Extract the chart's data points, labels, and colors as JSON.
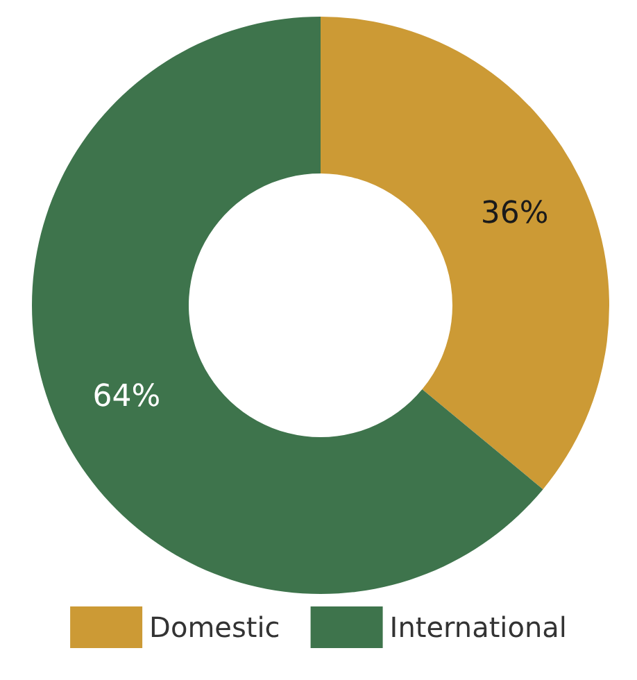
{
  "chart_data": {
    "type": "donut",
    "categories": [
      "Domestic",
      "International"
    ],
    "values": [
      36,
      64
    ],
    "colors": [
      "#cc9a35",
      "#3e744c"
    ],
    "value_labels": [
      "36%",
      "64%"
    ],
    "legend": "bottom"
  }
}
